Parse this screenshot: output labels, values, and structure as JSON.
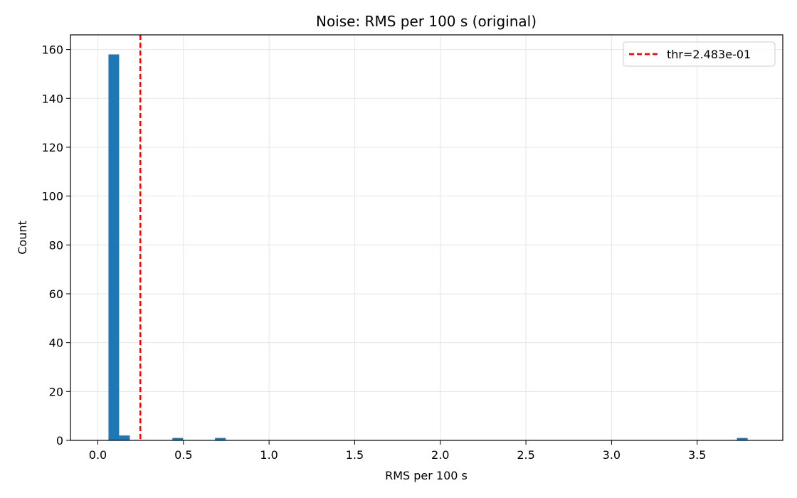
{
  "chart_data": {
    "type": "bar",
    "title": "Noise: RMS per 100 s (original)",
    "xlabel": "RMS per 100 s",
    "ylabel": "Count",
    "xlim": [
      -0.16,
      4.0
    ],
    "ylim": [
      0,
      166
    ],
    "xticks": [
      0.0,
      0.5,
      1.0,
      1.5,
      2.0,
      2.5,
      3.0,
      3.5
    ],
    "xtick_labels": [
      "0.0",
      "0.5",
      "1.0",
      "1.5",
      "2.0",
      "2.5",
      "3.0",
      "3.5"
    ],
    "yticks": [
      0,
      20,
      40,
      60,
      80,
      100,
      120,
      140,
      160
    ],
    "ytick_labels": [
      "0",
      "20",
      "40",
      "60",
      "80",
      "100",
      "120",
      "140",
      "160"
    ],
    "grid": true,
    "legend_position": "top-right",
    "bin_width": 0.0622,
    "bins": [
      {
        "x0": 0.0621,
        "count": 158
      },
      {
        "x0": 0.1243,
        "count": 2
      },
      {
        "x0": 0.4354,
        "count": 1
      },
      {
        "x0": 0.6842,
        "count": 1
      },
      {
        "x0": 3.7325,
        "count": 1
      }
    ],
    "bar_color": "#1f77b4",
    "threshold": {
      "value": 0.2483,
      "label": "thr=2.483e-01",
      "color": "#ff0000",
      "style": "dashed"
    }
  }
}
